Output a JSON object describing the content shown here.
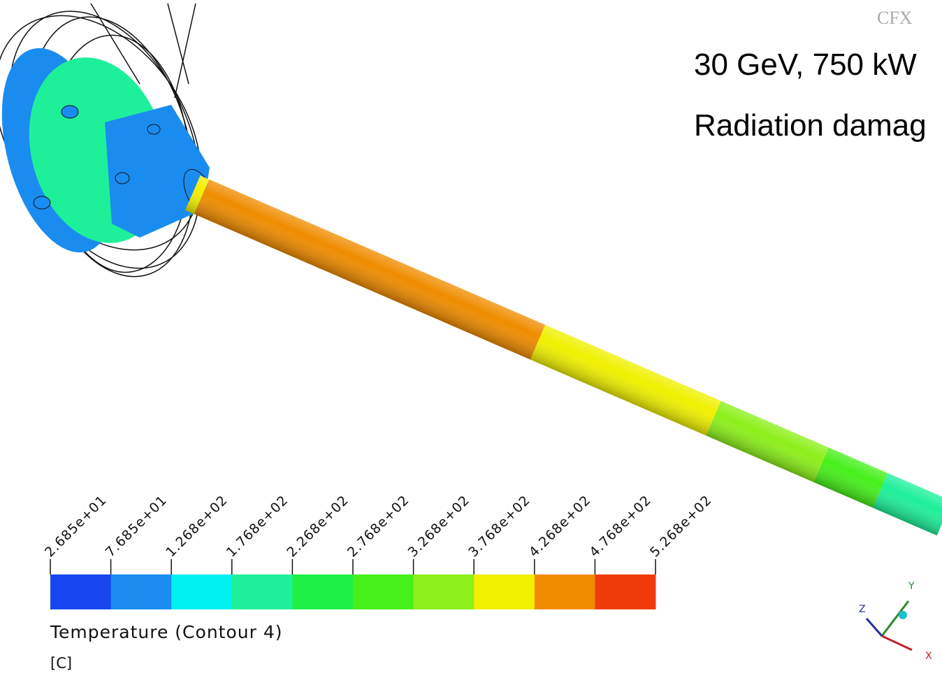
{
  "logo": "CFX",
  "notes": [
    "30 GeV, 750 kW",
    "Radiation damag"
  ],
  "legend": {
    "tick_labels": [
      "2.685e+01",
      "7.685e+01",
      "1.268e+02",
      "1.768e+02",
      "2.268e+02",
      "2.768e+02",
      "3.268e+02",
      "3.768e+02",
      "4.268e+02",
      "4.768e+02",
      "5.268e+02"
    ],
    "colors": [
      "#1846f0",
      "#1a8cf0",
      "#00f0f0",
      "#1ef09a",
      "#1ef046",
      "#46f01a",
      "#8cf01a",
      "#f0f000",
      "#f08c00",
      "#f03c0a"
    ],
    "title": "Temperature (Contour 4)",
    "unit": "[C]"
  },
  "axes": {
    "x": "X",
    "y": "Y",
    "z": "Z"
  }
}
